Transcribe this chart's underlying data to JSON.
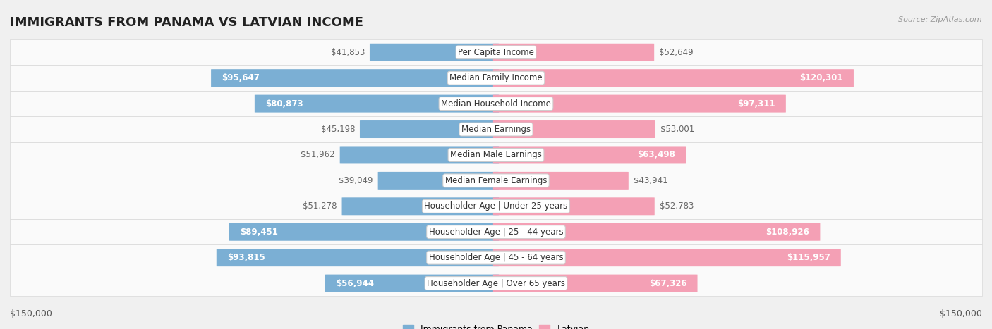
{
  "title": "IMMIGRANTS FROM PANAMA VS LATVIAN INCOME",
  "source": "Source: ZipAtlas.com",
  "categories": [
    "Per Capita Income",
    "Median Family Income",
    "Median Household Income",
    "Median Earnings",
    "Median Male Earnings",
    "Median Female Earnings",
    "Householder Age | Under 25 years",
    "Householder Age | 25 - 44 years",
    "Householder Age | 45 - 64 years",
    "Householder Age | Over 65 years"
  ],
  "panama_values": [
    41853,
    95647,
    80873,
    45198,
    51962,
    39049,
    51278,
    89451,
    93815,
    56944
  ],
  "latvian_values": [
    52649,
    120301,
    97311,
    53001,
    63498,
    43941,
    52783,
    108926,
    115957,
    67326
  ],
  "panama_labels": [
    "$41,853",
    "$95,647",
    "$80,873",
    "$45,198",
    "$51,962",
    "$39,049",
    "$51,278",
    "$89,451",
    "$93,815",
    "$56,944"
  ],
  "latvian_labels": [
    "$52,649",
    "$120,301",
    "$97,311",
    "$53,001",
    "$63,498",
    "$43,941",
    "$52,783",
    "$108,926",
    "$115,957",
    "$67,326"
  ],
  "panama_color": "#7BAFD4",
  "latvian_color": "#F4A0B5",
  "panama_label_color_outside": "#666666",
  "latvian_label_color_outside": "#666666",
  "panama_label_color_inside": "#ffffff",
  "latvian_label_color_inside": "#ffffff",
  "max_value": 150000,
  "bg_color": "#f0f0f0",
  "row_bg_even": "#f9f9f9",
  "row_bg_odd": "#f0f0f0",
  "legend_panama": "Immigrants from Panama",
  "legend_latvian": "Latvian",
  "xlabel_left": "$150,000",
  "xlabel_right": "$150,000",
  "title_fontsize": 13,
  "label_fontsize": 8.5,
  "category_fontsize": 8.5,
  "inside_threshold_panama": 55000,
  "inside_threshold_latvian": 55000
}
